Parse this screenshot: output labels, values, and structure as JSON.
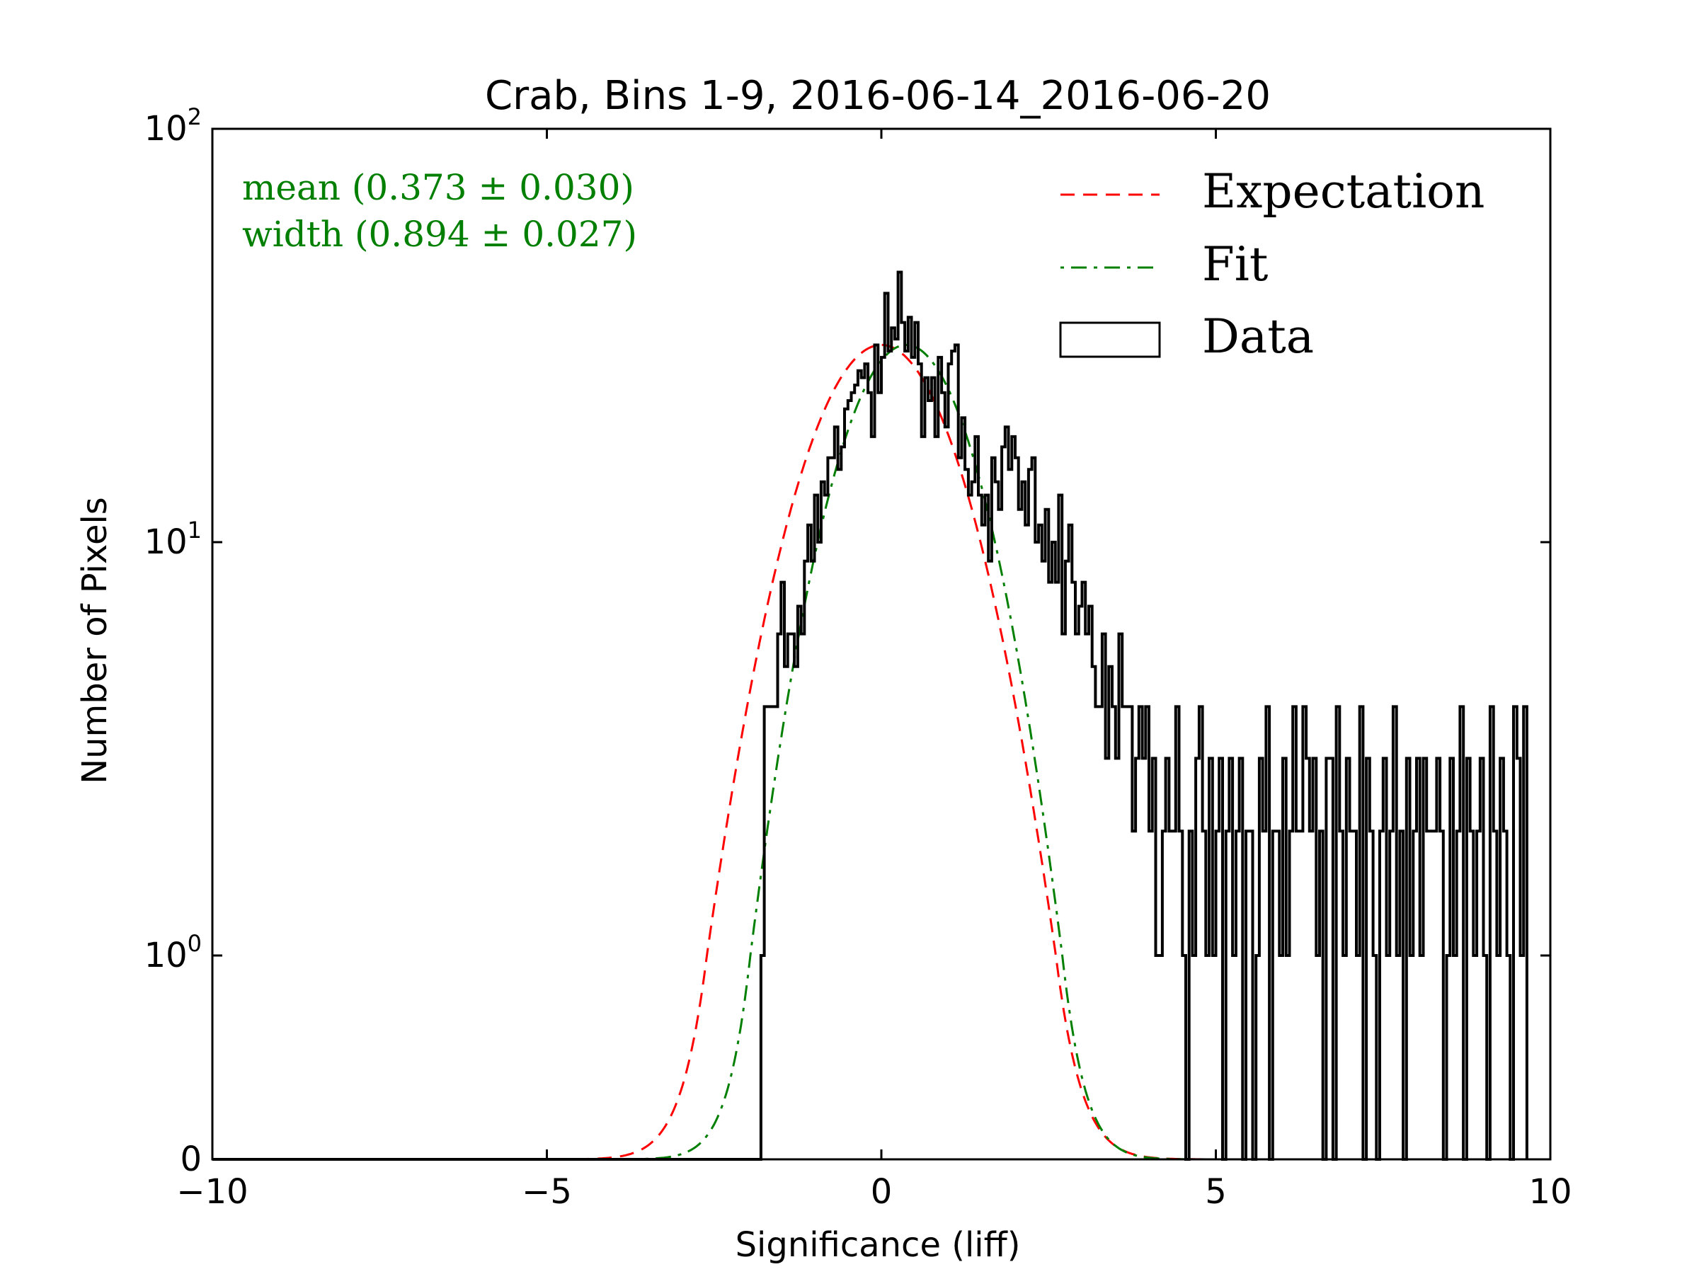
{
  "chart_data": {
    "type": "histogram",
    "title": "Crab, Bins 1-9, 2016-06-14_2016-06-20",
    "xlabel": "Significance (liff)",
    "ylabel": "Number of Pixels",
    "xlim": [
      -10,
      10
    ],
    "y_scale": "symlog (linthresh 1)",
    "ylim": [
      0,
      100
    ],
    "x_ticks": [
      -10,
      -5,
      0,
      5,
      10
    ],
    "x_tick_labels": [
      "−10",
      "−5",
      "0",
      "5",
      "10"
    ],
    "y_ticks": [
      0,
      1,
      10,
      100
    ],
    "y_tick_labels": [
      {
        "base": "0",
        "exp": ""
      },
      {
        "base": "10",
        "exp": "0"
      },
      {
        "base": "10",
        "exp": "1"
      },
      {
        "base": "10",
        "exp": "2"
      }
    ],
    "grid": false,
    "legend": {
      "placement": "top-right",
      "entries": [
        {
          "label": "Expectation",
          "style": "dashed",
          "color": "#ff0000"
        },
        {
          "label": "Fit",
          "style": "dashdot",
          "color": "#007f00"
        },
        {
          "label": "Data",
          "style": "step",
          "color": "#000000"
        }
      ]
    },
    "annotations": {
      "mean": "mean (0.373 ± 0.030)",
      "width": "width (0.894 ± 0.027)",
      "color": "#007f00"
    },
    "expectation": {
      "mean": 0,
      "sigma": 1,
      "peak": 30
    },
    "fit": {
      "mean": 0.373,
      "sigma": 0.894,
      "peak": 30
    },
    "histogram": {
      "x_start": -1.8,
      "bin_width": 0.05,
      "counts": [
        1,
        4,
        4,
        4,
        4,
        6,
        8,
        5,
        6,
        6,
        5,
        7,
        6,
        9,
        11,
        9,
        13,
        10,
        14,
        13,
        16,
        16,
        19,
        15,
        17,
        21,
        22,
        23,
        24,
        26,
        25,
        27,
        23,
        18,
        30,
        23,
        28,
        40,
        29,
        33,
        31,
        45,
        34,
        29,
        35,
        28,
        34,
        27,
        18,
        25,
        22,
        25,
        18,
        28,
        23,
        19,
        27,
        29,
        30,
        16,
        20,
        15,
        13,
        14,
        18,
        13,
        11,
        13,
        9,
        16,
        14,
        12,
        17,
        19,
        15,
        18,
        16,
        12,
        14,
        11,
        15,
        16,
        10,
        11,
        9,
        12,
        8,
        10,
        8,
        13,
        6,
        9,
        11,
        8,
        6,
        7,
        8,
        6,
        7,
        5,
        4,
        4,
        6,
        3,
        5,
        4,
        3,
        6,
        4,
        4,
        4,
        2,
        3,
        4,
        3,
        4,
        2,
        3,
        1,
        1,
        2,
        3,
        2,
        2,
        4,
        2,
        1,
        0,
        2,
        1,
        3,
        4,
        2,
        1,
        3,
        1,
        2,
        3,
        0,
        2,
        3,
        1,
        2,
        3,
        0,
        2,
        2,
        0,
        1,
        3,
        2,
        4,
        0,
        2,
        2,
        1,
        3,
        1,
        2,
        4,
        2,
        2,
        4,
        3,
        2,
        3,
        1,
        2,
        0,
        3,
        3,
        0,
        4,
        2,
        1,
        3,
        2,
        2,
        1,
        4,
        0,
        3,
        2,
        1,
        0,
        2,
        3,
        1,
        2,
        4,
        1,
        2,
        0,
        3,
        1,
        2,
        3,
        1,
        3,
        2,
        2,
        2,
        3,
        2,
        0,
        1,
        3,
        1,
        2,
        4,
        0,
        3,
        2,
        1,
        2,
        3,
        1,
        0,
        4,
        2,
        1,
        3,
        2,
        1,
        0,
        4,
        3,
        1,
        4
      ]
    }
  }
}
